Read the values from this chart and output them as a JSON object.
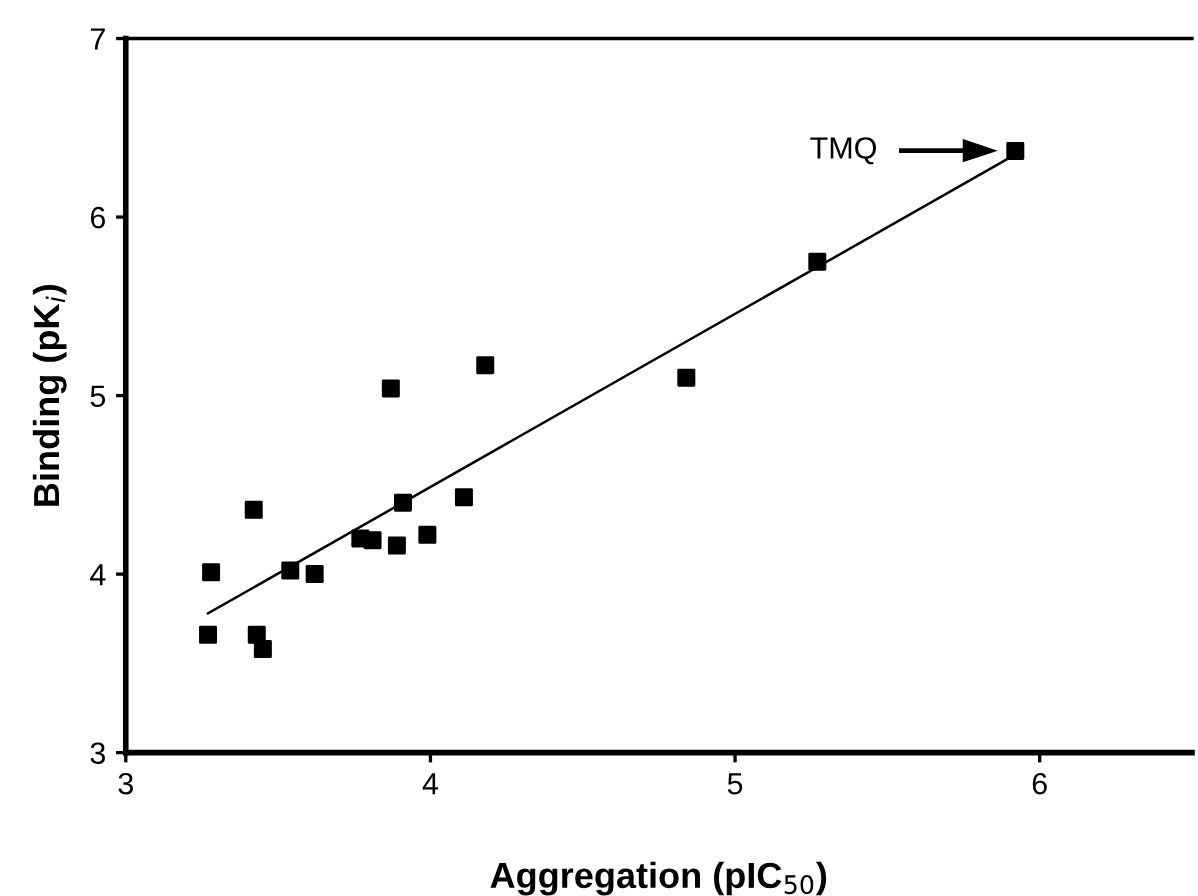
{
  "chart_data": {
    "type": "scatter",
    "xlabel": "Aggregation (pIC$_{50}$)",
    "ylabel": "Binding (pK$_{i}$)",
    "x": [
      3.27,
      3.28,
      3.42,
      3.43,
      3.45,
      3.54,
      3.62,
      3.77,
      3.81,
      3.87,
      3.89,
      3.91,
      3.99,
      4.11,
      4.18,
      4.84,
      5.27,
      5.92
    ],
    "series": [
      {
        "color": "#000000",
        "marker": "square",
        "values": [
          3.66,
          4.01,
          4.36,
          3.66,
          3.58,
          4.02,
          4.0,
          4.2,
          4.19,
          5.04,
          4.16,
          4.4,
          4.22,
          4.43,
          5.17,
          5.1,
          5.75,
          6.37
        ]
      },
      {
        "type": "line",
        "color": "#000000",
        "line_style": "solid",
        "x": [
          3.27,
          5.92
        ],
        "values": [
          3.78,
          6.35
        ]
      }
    ],
    "annotations": [
      "TMQ"
    ],
    "xlim": [
      3,
      6.5
    ],
    "ylim": [
      3,
      7
    ],
    "xticks": [
      3,
      4,
      5,
      6
    ],
    "yticks": [
      3,
      4,
      5,
      6,
      7
    ],
    "grid": false,
    "legend": false
  }
}
